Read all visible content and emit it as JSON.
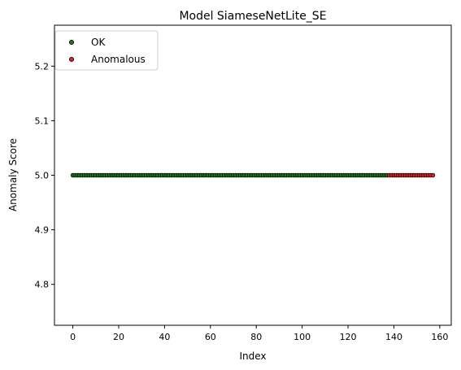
{
  "chart_data": {
    "type": "scatter",
    "title": "Model SiameseNetLite_SE",
    "xlabel": "Index",
    "ylabel": "Anomaly Score",
    "xlim": [
      -8,
      165
    ],
    "ylim": [
      4.725,
      5.275
    ],
    "xticks": [
      0,
      20,
      40,
      60,
      80,
      100,
      120,
      140,
      160
    ],
    "yticks": [
      4.8,
      4.9,
      5.0,
      5.1,
      5.2
    ],
    "xtick_labels": [
      "0",
      "20",
      "40",
      "60",
      "80",
      "100",
      "120",
      "140",
      "160"
    ],
    "ytick_labels": [
      "4.8",
      "4.9",
      "5.0",
      "5.1",
      "5.2"
    ],
    "grid": false,
    "legend_position": "top-left",
    "series": [
      {
        "name": "OK",
        "color": "#1a7a1a",
        "x_start": 0,
        "x_end": 137,
        "y": 5.0
      },
      {
        "name": "Anomalous",
        "color": "#e02020",
        "x_start": 138,
        "x_end": 157,
        "y": 5.0
      }
    ]
  }
}
